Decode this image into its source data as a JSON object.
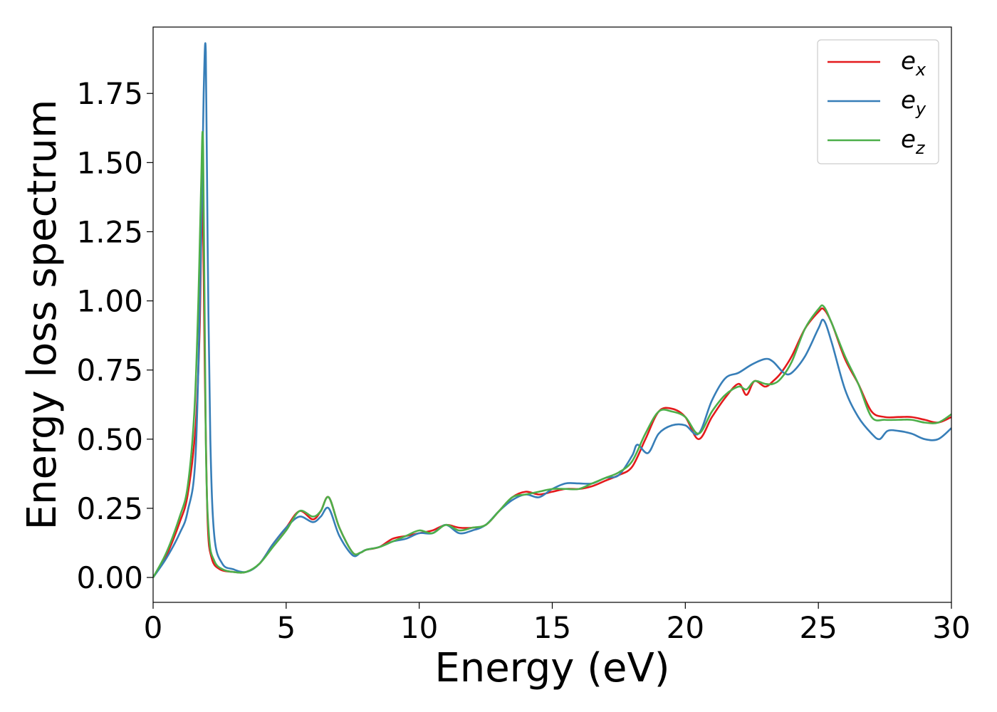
{
  "chart_data": {
    "type": "line",
    "xlabel": "Energy (eV)",
    "ylabel": "Energy loss spectrum",
    "xlim": [
      0,
      30
    ],
    "ylim": [
      -0.09,
      1.99
    ],
    "xticks": [
      0,
      5,
      10,
      15,
      20,
      25,
      30
    ],
    "xtick_labels": [
      "0",
      "5",
      "10",
      "15",
      "20",
      "25",
      "30"
    ],
    "yticks": [
      0.0,
      0.25,
      0.5,
      0.75,
      1.0,
      1.25,
      1.5,
      1.75
    ],
    "ytick_labels": [
      "0.00",
      "0.25",
      "0.50",
      "0.75",
      "1.00",
      "1.25",
      "1.50",
      "1.75"
    ],
    "grid": false,
    "legend_position": "top-right",
    "series": [
      {
        "name": "e_x",
        "legend_base": "e",
        "legend_sub": "x",
        "color": "#e41a1c",
        "x": [
          0,
          0.5,
          1.0,
          1.3,
          1.6,
          1.75,
          1.85,
          1.95,
          2.05,
          2.2,
          2.5,
          3.0,
          3.5,
          4.0,
          4.5,
          5.0,
          5.5,
          6.0,
          6.3,
          6.6,
          7.0,
          7.5,
          7.8,
          8.0,
          8.5,
          9.0,
          9.5,
          10.0,
          10.5,
          11.0,
          11.5,
          12.0,
          12.5,
          13.0,
          13.5,
          14.0,
          14.5,
          15.0,
          15.5,
          16.0,
          16.5,
          17.0,
          17.5,
          18.0,
          18.5,
          19.0,
          19.5,
          20.0,
          20.5,
          21.0,
          21.5,
          22.0,
          22.3,
          22.6,
          23.0,
          23.3,
          23.6,
          24.0,
          24.5,
          25.0,
          25.2,
          25.5,
          26.0,
          26.5,
          27.0,
          27.5,
          28.0,
          28.5,
          29.0,
          29.5,
          30.0
        ],
        "y": [
          0.0,
          0.08,
          0.2,
          0.3,
          0.55,
          0.9,
          1.38,
          0.7,
          0.2,
          0.07,
          0.03,
          0.02,
          0.02,
          0.05,
          0.12,
          0.18,
          0.24,
          0.21,
          0.24,
          0.29,
          0.18,
          0.09,
          0.09,
          0.1,
          0.11,
          0.14,
          0.15,
          0.16,
          0.17,
          0.19,
          0.18,
          0.18,
          0.19,
          0.24,
          0.29,
          0.31,
          0.3,
          0.31,
          0.32,
          0.32,
          0.33,
          0.35,
          0.37,
          0.4,
          0.5,
          0.6,
          0.61,
          0.58,
          0.5,
          0.58,
          0.65,
          0.7,
          0.66,
          0.71,
          0.69,
          0.71,
          0.74,
          0.8,
          0.9,
          0.96,
          0.97,
          0.92,
          0.79,
          0.7,
          0.6,
          0.58,
          0.58,
          0.58,
          0.57,
          0.56,
          0.58
        ]
      },
      {
        "name": "e_y",
        "legend_base": "e",
        "legend_sub": "y",
        "color": "#377eb8",
        "x": [
          0,
          0.5,
          1.0,
          1.3,
          1.6,
          1.8,
          1.9,
          1.98,
          2.05,
          2.15,
          2.3,
          2.6,
          3.0,
          3.5,
          4.0,
          4.5,
          5.0,
          5.5,
          6.0,
          6.3,
          6.6,
          7.0,
          7.5,
          7.8,
          8.0,
          8.5,
          9.0,
          9.5,
          10.0,
          10.5,
          11.0,
          11.5,
          12.0,
          12.5,
          13.0,
          13.5,
          14.0,
          14.5,
          15.0,
          15.5,
          16.0,
          16.5,
          17.0,
          17.5,
          18.0,
          18.2,
          18.6,
          19.0,
          19.5,
          20.0,
          20.5,
          21.0,
          21.5,
          22.0,
          22.5,
          23.0,
          23.3,
          23.7,
          24.0,
          24.5,
          25.0,
          25.2,
          25.5,
          26.0,
          26.5,
          27.0,
          27.3,
          27.6,
          28.0,
          28.5,
          29.0,
          29.5,
          30.0
        ],
        "y": [
          0.0,
          0.07,
          0.16,
          0.24,
          0.45,
          1.2,
          1.75,
          1.9,
          1.2,
          0.5,
          0.15,
          0.05,
          0.03,
          0.02,
          0.05,
          0.12,
          0.18,
          0.22,
          0.2,
          0.22,
          0.25,
          0.15,
          0.08,
          0.09,
          0.1,
          0.11,
          0.13,
          0.14,
          0.16,
          0.16,
          0.19,
          0.16,
          0.17,
          0.19,
          0.24,
          0.28,
          0.3,
          0.29,
          0.32,
          0.34,
          0.34,
          0.34,
          0.36,
          0.37,
          0.44,
          0.48,
          0.45,
          0.52,
          0.55,
          0.55,
          0.52,
          0.64,
          0.72,
          0.74,
          0.77,
          0.79,
          0.78,
          0.74,
          0.74,
          0.8,
          0.9,
          0.93,
          0.85,
          0.68,
          0.58,
          0.52,
          0.5,
          0.53,
          0.53,
          0.52,
          0.5,
          0.5,
          0.54
        ]
      },
      {
        "name": "e_z",
        "legend_base": "e",
        "legend_sub": "z",
        "color": "#4daf4a",
        "x": [
          0,
          0.5,
          1.0,
          1.3,
          1.55,
          1.7,
          1.8,
          1.88,
          1.98,
          2.1,
          2.3,
          2.6,
          3.0,
          3.5,
          4.0,
          4.5,
          5.0,
          5.5,
          6.0,
          6.3,
          6.6,
          7.0,
          7.5,
          7.8,
          8.0,
          8.5,
          9.0,
          9.5,
          10.0,
          10.5,
          11.0,
          11.5,
          12.0,
          12.5,
          13.0,
          13.5,
          14.0,
          14.5,
          15.0,
          15.5,
          16.0,
          16.5,
          17.0,
          17.5,
          18.0,
          18.5,
          19.0,
          19.5,
          20.0,
          20.5,
          21.0,
          21.5,
          22.0,
          22.3,
          22.6,
          23.0,
          23.3,
          23.6,
          24.0,
          24.5,
          25.0,
          25.2,
          25.5,
          26.0,
          26.5,
          27.0,
          27.5,
          28.0,
          28.5,
          29.0,
          29.5,
          30.0
        ],
        "y": [
          0.0,
          0.09,
          0.22,
          0.33,
          0.6,
          1.0,
          1.4,
          1.56,
          0.5,
          0.15,
          0.06,
          0.03,
          0.02,
          0.02,
          0.05,
          0.11,
          0.17,
          0.24,
          0.22,
          0.24,
          0.29,
          0.18,
          0.09,
          0.09,
          0.1,
          0.11,
          0.13,
          0.15,
          0.17,
          0.16,
          0.19,
          0.17,
          0.18,
          0.19,
          0.24,
          0.29,
          0.3,
          0.31,
          0.32,
          0.32,
          0.32,
          0.34,
          0.36,
          0.38,
          0.42,
          0.52,
          0.6,
          0.6,
          0.58,
          0.52,
          0.6,
          0.66,
          0.69,
          0.68,
          0.71,
          0.7,
          0.7,
          0.72,
          0.78,
          0.9,
          0.97,
          0.98,
          0.92,
          0.8,
          0.7,
          0.58,
          0.57,
          0.57,
          0.57,
          0.56,
          0.56,
          0.59
        ]
      }
    ]
  }
}
